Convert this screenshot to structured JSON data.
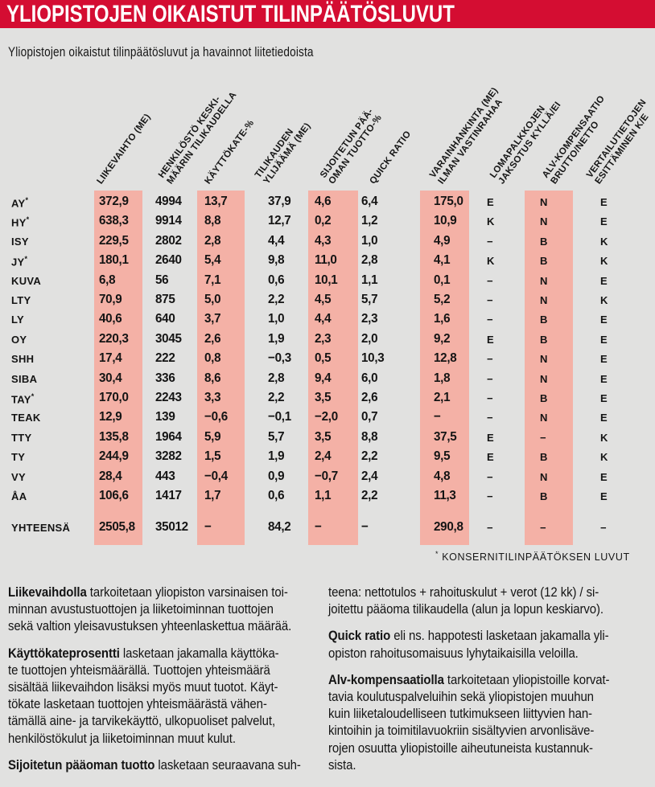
{
  "header": {
    "title": "YLIOPISTOJEN OIKAISTUT TILINPÄÄTÖSLUVUT"
  },
  "subtitle": "Yliopistojen oikaistut tilinpäätösluvut ja havainnot liitetiedoista",
  "colors": {
    "accent_red": "#d40d32",
    "highlight_pink": "#f4b1a6",
    "background": "#e1e1e0",
    "text": "#141414",
    "title_text": "#ffffff"
  },
  "table": {
    "columns": [
      {
        "label_lines": [
          "LIIKEVAIHTO (ME)"
        ],
        "highlight": true
      },
      {
        "label_lines": [
          "HENKILÖSTÖ KESKI-",
          "MÄÄRIN TILIKAUDELLA"
        ],
        "highlight": false
      },
      {
        "label_lines": [
          "KÄYTTÖKATE-%"
        ],
        "highlight": true
      },
      {
        "label_lines": [
          "TILIKAUDEN",
          "YLIJÄÄMÄ (ME)"
        ],
        "highlight": false
      },
      {
        "label_lines": [
          "SIJOITETUN PÄÄ-",
          "OMAN TUOTTO-%"
        ],
        "highlight": true
      },
      {
        "label_lines": [
          "QUICK RATIO"
        ],
        "highlight": false
      },
      {
        "label_lines": [
          "VARAINHANKINTA (ME)",
          "ILMAN VASTINRAHAA"
        ],
        "highlight": true
      },
      {
        "label_lines": [
          "LOMAPALKKOJEN",
          "JAKSOTUS KYLLÄ/EI"
        ],
        "highlight": false
      },
      {
        "label_lines": [
          "ALV-KOMPENSAATIO",
          "BRUTTO/NETTO"
        ],
        "highlight": true
      },
      {
        "label_lines": [
          "VERTAILUTIETOJEN",
          "ESITTÄMINEN K/E"
        ],
        "highlight": false
      }
    ],
    "rows": [
      {
        "label": "AY",
        "star": true,
        "values": [
          "372,9",
          "4994",
          "13,7",
          "37,9",
          "4,6",
          "6,4",
          "175,0",
          "E",
          "N",
          "E"
        ]
      },
      {
        "label": "HY",
        "star": true,
        "values": [
          "638,3",
          "9914",
          "8,8",
          "12,7",
          "0,2",
          "1,2",
          "10,9",
          "K",
          "N",
          "E"
        ]
      },
      {
        "label": "ISY",
        "star": false,
        "values": [
          "229,5",
          "2802",
          "2,8",
          "4,4",
          "4,3",
          "1,0",
          "4,9",
          "−",
          "B",
          "K"
        ]
      },
      {
        "label": "JY",
        "star": true,
        "values": [
          "180,1",
          "2640",
          "5,4",
          "9,8",
          "11,0",
          "2,8",
          "4,1",
          "K",
          "B",
          "K"
        ]
      },
      {
        "label": "KUVA",
        "star": false,
        "values": [
          "6,8",
          "56",
          "7,1",
          "0,6",
          "10,1",
          "1,1",
          "0,1",
          "−",
          "N",
          "E"
        ]
      },
      {
        "label": "LTY",
        "star": false,
        "values": [
          "70,9",
          "875",
          "5,0",
          "2,2",
          "4,5",
          "5,7",
          "5,2",
          "−",
          "N",
          "K"
        ]
      },
      {
        "label": "LY",
        "star": false,
        "values": [
          "40,6",
          "640",
          "3,7",
          "1,0",
          "4,4",
          "2,3",
          "1,6",
          "−",
          "B",
          "E"
        ]
      },
      {
        "label": "OY",
        "star": false,
        "values": [
          "220,3",
          "3045",
          "2,6",
          "1,9",
          "2,3",
          "2,0",
          "9,2",
          "E",
          "B",
          "E"
        ]
      },
      {
        "label": "SHH",
        "star": false,
        "values": [
          "17,4",
          "222",
          "0,8",
          "−0,3",
          "0,5",
          "10,3",
          "12,8",
          "−",
          "N",
          "E"
        ]
      },
      {
        "label": "SIBA",
        "star": false,
        "values": [
          "30,4",
          "336",
          "8,6",
          "2,8",
          "9,4",
          "6,0",
          "1,8",
          "−",
          "N",
          "E"
        ]
      },
      {
        "label": "TAY",
        "star": true,
        "values": [
          "170,0",
          "2243",
          "3,3",
          "2,2",
          "3,5",
          "2,6",
          "2,1",
          "−",
          "B",
          "E"
        ]
      },
      {
        "label": "TEAK",
        "star": false,
        "values": [
          "12,9",
          "139",
          "−0,6",
          "−0,1",
          "−2,0",
          "0,7",
          "−",
          "−",
          "N",
          "E"
        ]
      },
      {
        "label": "TTY",
        "star": false,
        "values": [
          "135,8",
          "1964",
          "5,9",
          "5,7",
          "3,5",
          "8,8",
          "37,5",
          "E",
          "−",
          "K"
        ]
      },
      {
        "label": "TY",
        "star": false,
        "values": [
          "244,9",
          "3282",
          "1,5",
          "1,9",
          "2,4",
          "2,2",
          "9,5",
          "E",
          "B",
          "K"
        ]
      },
      {
        "label": "VY",
        "star": false,
        "values": [
          "28,4",
          "443",
          "−0,4",
          "0,9",
          "−0,7",
          "2,4",
          "4,8",
          "−",
          "N",
          "E"
        ]
      },
      {
        "label": "ÅA",
        "star": false,
        "values": [
          "106,6",
          "1417",
          "1,7",
          "0,6",
          "1,1",
          "2,2",
          "11,3",
          "−",
          "B",
          "E"
        ]
      }
    ],
    "total_row": {
      "label": "YHTEENSÄ",
      "star": false,
      "values": [
        "2505,8",
        "35012",
        "−",
        "84,2",
        "−",
        "−",
        "290,8",
        "−",
        "−",
        "−"
      ]
    },
    "footnote": {
      "star": "*",
      "text": "KONSERNITILINPÄÄTÖKSEN LUVUT"
    }
  },
  "definitions": {
    "left": [
      {
        "lines": [
          {
            "b": "Liikevaihdolla",
            "t": " tarkoitetaan yliopiston varsinaisen toi-"
          },
          {
            "t": "minnan avustustuottojen ja liiketoiminnan tuottojen"
          },
          {
            "t": "sekä valtion yleisavustuksen yhteenlaskettua määrää."
          }
        ]
      },
      {
        "lines": [
          {
            "b": "Käyttökateprosentti",
            "t": " lasketaan jakamalla käyttöka-"
          },
          {
            "t": "te tuottojen yhteismäärällä. Tuottojen yhteismäärä"
          },
          {
            "t": "sisältää liikevaihdon lisäksi myös muut tuotot. Käyt-"
          },
          {
            "t": "tökate lasketaan tuottojen yhteismäärästä vähen-"
          },
          {
            "t": "tämällä aine- ja tarvikekäyttö, ulkopuoliset palvelut,"
          },
          {
            "t": "henkilöstökulut ja liiketoiminnan muut kulut."
          }
        ]
      },
      {
        "lines": [
          {
            "b": "Sijoitetun pääoman tuotto",
            "t": " lasketaan seuraavana suh-"
          }
        ]
      }
    ],
    "right": [
      {
        "lines": [
          {
            "t": "teena: nettotulos + rahoituskulut + verot (12 kk) / si-"
          },
          {
            "t": "joitettu pääoma tilikaudella (alun ja lopun keskiarvo)."
          }
        ]
      },
      {
        "lines": [
          {
            "b": "Quick ratio",
            "t": " eli ns. happotesti lasketaan jakamalla yli-"
          },
          {
            "t": "opiston rahoitusomaisuus lyhytaikaisilla veloilla."
          }
        ]
      },
      {
        "lines": [
          {
            "b": "Alv-kompensaatiolla",
            "t": " tarkoitetaan yliopistoille korvat-"
          },
          {
            "t": "tavia koulutuspalveluihin sekä yliopistojen muuhun"
          },
          {
            "t": "kuin liiketaloudelliseen tutkimukseen liittyvien han-"
          },
          {
            "t": "kintoihin ja toimitilavuokriin sisältyvien arvonlisäve-"
          },
          {
            "t": "rojen osuutta yliopistoille aiheutuneista kustannuk-"
          },
          {
            "t": "sista."
          }
        ]
      }
    ]
  }
}
